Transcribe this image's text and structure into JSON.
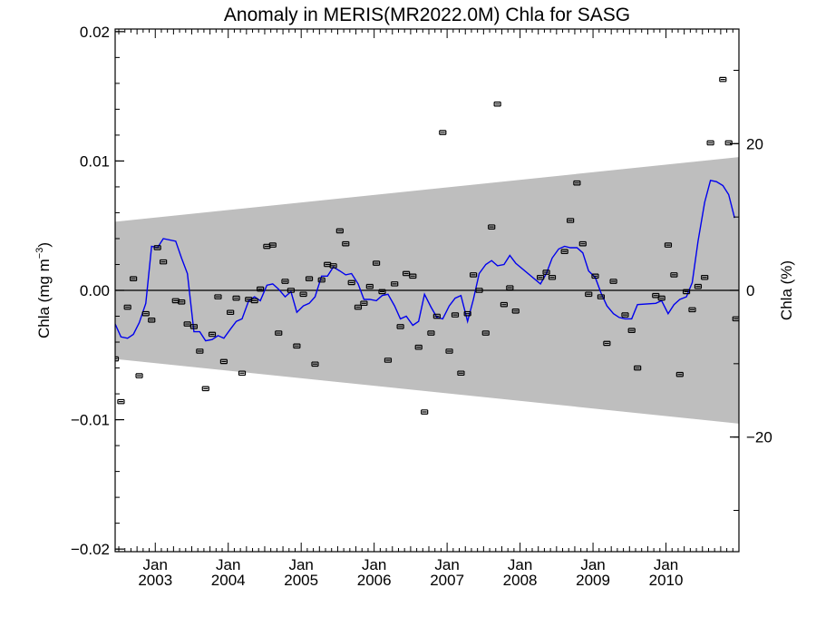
{
  "chart_data": {
    "type": "scatter",
    "title": "Anomaly in MERIS(MR2022.0M) Chla for SASG",
    "ylabel_left": "Chla (mg m",
    "ylabel_left_sup": "−3",
    "ylabel_left_close": ")",
    "ylabel_right": "Chla (%)",
    "ylim": [
      -0.0202,
      0.0202
    ],
    "y_ticks": [
      {
        "value": 0.02,
        "label": "0.02"
      },
      {
        "value": 0.01,
        "label": "0.01"
      },
      {
        "value": 0.0,
        "label": "0.00"
      },
      {
        "value": -0.01,
        "label": "−0.01"
      },
      {
        "value": -0.02,
        "label": "−0.02"
      }
    ],
    "y_right_ticks": [
      {
        "value": 20,
        "label": "20"
      },
      {
        "value": 0,
        "label": "0"
      },
      {
        "value": -20,
        "label": "−20"
      }
    ],
    "y_right_scale_mg_per_percent": 0.000567,
    "xlim": [
      2002.45,
      2011.0
    ],
    "x_ticks": [
      {
        "value": 2003.0,
        "month": "Jan",
        "year": "2003"
      },
      {
        "value": 2004.0,
        "month": "Jan",
        "year": "2004"
      },
      {
        "value": 2005.0,
        "month": "Jan",
        "year": "2005"
      },
      {
        "value": 2006.0,
        "month": "Jan",
        "year": "2006"
      },
      {
        "value": 2007.0,
        "month": "Jan",
        "year": "2007"
      },
      {
        "value": 2008.0,
        "month": "Jan",
        "year": "2008"
      },
      {
        "value": 2009.0,
        "month": "Jan",
        "year": "2009"
      },
      {
        "value": 2010.0,
        "month": "Jan",
        "year": "2010"
      }
    ],
    "band": {
      "x": [
        2002.45,
        2011.0
      ],
      "upper": [
        0.0053,
        0.0103
      ],
      "lower": [
        -0.0053,
        -0.0103
      ],
      "color": "#bebebe"
    },
    "zero_line": 0,
    "points_color": "#000000",
    "line_color": "#0000ee",
    "points": [
      {
        "x": 2002.45,
        "y": -0.0053
      },
      {
        "x": 2002.53,
        "y": -0.0086
      },
      {
        "x": 2002.62,
        "y": -0.0013
      },
      {
        "x": 2002.7,
        "y": 0.0009
      },
      {
        "x": 2002.78,
        "y": -0.0066
      },
      {
        "x": 2002.87,
        "y": -0.0018
      },
      {
        "x": 2002.95,
        "y": -0.0023
      },
      {
        "x": 2003.03,
        "y": 0.0033
      },
      {
        "x": 2003.11,
        "y": 0.0022
      },
      {
        "x": 2003.28,
        "y": -0.0008
      },
      {
        "x": 2003.36,
        "y": -0.0009
      },
      {
        "x": 2003.44,
        "y": -0.0026
      },
      {
        "x": 2003.53,
        "y": -0.0028
      },
      {
        "x": 2003.61,
        "y": -0.0047
      },
      {
        "x": 2003.69,
        "y": -0.0076
      },
      {
        "x": 2003.78,
        "y": -0.0034
      },
      {
        "x": 2003.86,
        "y": -0.0005
      },
      {
        "x": 2003.94,
        "y": -0.0055
      },
      {
        "x": 2004.03,
        "y": -0.0017
      },
      {
        "x": 2004.11,
        "y": -0.0006
      },
      {
        "x": 2004.19,
        "y": -0.0064
      },
      {
        "x": 2004.28,
        "y": -0.0007
      },
      {
        "x": 2004.36,
        "y": -0.0008
      },
      {
        "x": 2004.44,
        "y": 0.0001
      },
      {
        "x": 2004.53,
        "y": 0.0034
      },
      {
        "x": 2004.61,
        "y": 0.0035
      },
      {
        "x": 2004.69,
        "y": -0.0033
      },
      {
        "x": 2004.78,
        "y": 0.0007
      },
      {
        "x": 2004.86,
        "y": 0.0
      },
      {
        "x": 2004.94,
        "y": -0.0043
      },
      {
        "x": 2005.03,
        "y": -0.0003
      },
      {
        "x": 2005.11,
        "y": 0.0009
      },
      {
        "x": 2005.19,
        "y": -0.0057
      },
      {
        "x": 2005.28,
        "y": 0.0008
      },
      {
        "x": 2005.36,
        "y": 0.002
      },
      {
        "x": 2005.44,
        "y": 0.0019
      },
      {
        "x": 2005.53,
        "y": 0.0046
      },
      {
        "x": 2005.61,
        "y": 0.0036
      },
      {
        "x": 2005.69,
        "y": 0.0006
      },
      {
        "x": 2005.78,
        "y": -0.0013
      },
      {
        "x": 2005.86,
        "y": -0.001
      },
      {
        "x": 2005.94,
        "y": 0.0003
      },
      {
        "x": 2006.03,
        "y": 0.0021
      },
      {
        "x": 2006.11,
        "y": -0.0001
      },
      {
        "x": 2006.19,
        "y": -0.0054
      },
      {
        "x": 2006.28,
        "y": 0.0005
      },
      {
        "x": 2006.36,
        "y": -0.0028
      },
      {
        "x": 2006.44,
        "y": 0.0013
      },
      {
        "x": 2006.53,
        "y": 0.0011
      },
      {
        "x": 2006.61,
        "y": -0.0044
      },
      {
        "x": 2006.69,
        "y": -0.0094
      },
      {
        "x": 2006.78,
        "y": -0.0033
      },
      {
        "x": 2006.86,
        "y": -0.002
      },
      {
        "x": 2006.94,
        "y": 0.0122
      },
      {
        "x": 2007.03,
        "y": -0.0047
      },
      {
        "x": 2007.11,
        "y": -0.0019
      },
      {
        "x": 2007.19,
        "y": -0.0064
      },
      {
        "x": 2007.28,
        "y": -0.0018
      },
      {
        "x": 2007.36,
        "y": 0.0012
      },
      {
        "x": 2007.44,
        "y": 0.0
      },
      {
        "x": 2007.53,
        "y": -0.0033
      },
      {
        "x": 2007.61,
        "y": 0.0049
      },
      {
        "x": 2007.69,
        "y": 0.0144
      },
      {
        "x": 2007.78,
        "y": -0.0011
      },
      {
        "x": 2007.86,
        "y": 0.0002
      },
      {
        "x": 2007.94,
        "y": -0.0016
      },
      {
        "x": 2008.28,
        "y": 0.001
      },
      {
        "x": 2008.36,
        "y": 0.0014
      },
      {
        "x": 2008.44,
        "y": 0.001
      },
      {
        "x": 2008.61,
        "y": 0.003
      },
      {
        "x": 2008.69,
        "y": 0.0054
      },
      {
        "x": 2008.78,
        "y": 0.0083
      },
      {
        "x": 2008.86,
        "y": 0.0036
      },
      {
        "x": 2008.94,
        "y": -0.0003
      },
      {
        "x": 2009.03,
        "y": 0.0011
      },
      {
        "x": 2009.11,
        "y": -0.0005
      },
      {
        "x": 2009.19,
        "y": -0.0041
      },
      {
        "x": 2009.28,
        "y": 0.0007
      },
      {
        "x": 2009.44,
        "y": -0.0019
      },
      {
        "x": 2009.53,
        "y": -0.0031
      },
      {
        "x": 2009.61,
        "y": -0.006
      },
      {
        "x": 2009.86,
        "y": -0.0004
      },
      {
        "x": 2009.94,
        "y": -0.0006
      },
      {
        "x": 2010.03,
        "y": 0.0035
      },
      {
        "x": 2010.11,
        "y": 0.0012
      },
      {
        "x": 2010.19,
        "y": -0.0065
      },
      {
        "x": 2010.28,
        "y": -0.0001
      },
      {
        "x": 2010.36,
        "y": -0.0015
      },
      {
        "x": 2010.44,
        "y": 0.0003
      },
      {
        "x": 2010.53,
        "y": 0.001
      },
      {
        "x": 2010.61,
        "y": 0.0114
      },
      {
        "x": 2010.78,
        "y": 0.0163
      },
      {
        "x": 2010.86,
        "y": 0.0114
      },
      {
        "x": 2010.96,
        "y": -0.0022
      }
    ],
    "line": [
      [
        2002.45,
        -0.0026
      ],
      [
        2002.53,
        -0.0036
      ],
      [
        2002.62,
        -0.0037
      ],
      [
        2002.7,
        -0.0034
      ],
      [
        2002.78,
        -0.0025
      ],
      [
        2002.87,
        -0.001
      ],
      [
        2002.95,
        0.0034
      ],
      [
        2003.03,
        0.0033
      ],
      [
        2003.11,
        0.004
      ],
      [
        2003.28,
        0.0038
      ],
      [
        2003.36,
        0.0025
      ],
      [
        2003.44,
        0.0013
      ],
      [
        2003.53,
        -0.0032
      ],
      [
        2003.61,
        -0.0032
      ],
      [
        2003.69,
        -0.0039
      ],
      [
        2003.78,
        -0.0038
      ],
      [
        2003.86,
        -0.0035
      ],
      [
        2003.94,
        -0.0037
      ],
      [
        2004.03,
        -0.003
      ],
      [
        2004.11,
        -0.0024
      ],
      [
        2004.19,
        -0.0022
      ],
      [
        2004.28,
        -0.0008
      ],
      [
        2004.36,
        -0.0005
      ],
      [
        2004.44,
        -0.0008
      ],
      [
        2004.53,
        0.0004
      ],
      [
        2004.61,
        0.0005
      ],
      [
        2004.69,
        0.0001
      ],
      [
        2004.78,
        -0.0005
      ],
      [
        2004.86,
        -0.0001
      ],
      [
        2004.94,
        -0.0017
      ],
      [
        2005.03,
        -0.0012
      ],
      [
        2005.11,
        -0.001
      ],
      [
        2005.19,
        -0.0005
      ],
      [
        2005.28,
        0.0011
      ],
      [
        2005.36,
        0.0011
      ],
      [
        2005.44,
        0.0018
      ],
      [
        2005.53,
        0.0015
      ],
      [
        2005.61,
        0.0012
      ],
      [
        2005.69,
        0.0013
      ],
      [
        2005.78,
        0.0005
      ],
      [
        2005.86,
        -0.0007
      ],
      [
        2005.94,
        -0.0007
      ],
      [
        2006.03,
        -0.0008
      ],
      [
        2006.11,
        -0.0004
      ],
      [
        2006.19,
        -0.0003
      ],
      [
        2006.28,
        -0.0012
      ],
      [
        2006.36,
        -0.0022
      ],
      [
        2006.44,
        -0.002
      ],
      [
        2006.53,
        -0.0027
      ],
      [
        2006.61,
        -0.0024
      ],
      [
        2006.69,
        -0.0003
      ],
      [
        2006.78,
        -0.0013
      ],
      [
        2006.86,
        -0.0021
      ],
      [
        2006.94,
        -0.0022
      ],
      [
        2007.03,
        -0.0012
      ],
      [
        2007.11,
        -0.0006
      ],
      [
        2007.19,
        -0.0004
      ],
      [
        2007.28,
        -0.0024
      ],
      [
        2007.36,
        -0.0007
      ],
      [
        2007.44,
        0.0013
      ],
      [
        2007.53,
        0.002
      ],
      [
        2007.61,
        0.0023
      ],
      [
        2007.69,
        0.0019
      ],
      [
        2007.78,
        0.002
      ],
      [
        2007.86,
        0.0027
      ],
      [
        2007.94,
        0.0021
      ],
      [
        2008.28,
        0.0005
      ],
      [
        2008.36,
        0.0013
      ],
      [
        2008.44,
        0.0025
      ],
      [
        2008.53,
        0.0032
      ],
      [
        2008.61,
        0.0034
      ],
      [
        2008.69,
        0.0033
      ],
      [
        2008.78,
        0.0033
      ],
      [
        2008.86,
        0.0029
      ],
      [
        2008.94,
        0.0015
      ],
      [
        2009.03,
        0.001
      ],
      [
        2009.11,
        -0.0002
      ],
      [
        2009.19,
        -0.0012
      ],
      [
        2009.28,
        -0.0018
      ],
      [
        2009.36,
        -0.0021
      ],
      [
        2009.44,
        -0.0022
      ],
      [
        2009.53,
        -0.0022
      ],
      [
        2009.61,
        -0.0011
      ],
      [
        2009.86,
        -0.001
      ],
      [
        2009.94,
        -0.0008
      ],
      [
        2010.03,
        -0.0018
      ],
      [
        2010.11,
        -0.0011
      ],
      [
        2010.19,
        -0.0007
      ],
      [
        2010.28,
        -0.0005
      ],
      [
        2010.36,
        0.0006
      ],
      [
        2010.44,
        0.0038
      ],
      [
        2010.53,
        0.0068
      ],
      [
        2010.61,
        0.0085
      ],
      [
        2010.69,
        0.0084
      ],
      [
        2010.78,
        0.0081
      ],
      [
        2010.86,
        0.0074
      ],
      [
        2010.94,
        0.0056
      ]
    ]
  }
}
